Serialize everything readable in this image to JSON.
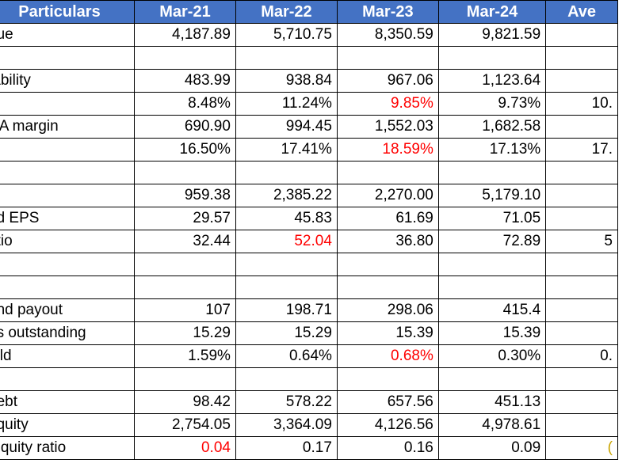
{
  "header": [
    "Particulars",
    "Mar-21",
    "Mar-22",
    "Mar-23",
    "Mar-24",
    "Ave"
  ],
  "rows": [
    {
      "cells": [
        "nue",
        "4,187.89",
        "5,710.75",
        "8,350.59",
        "9,821.59",
        ""
      ]
    },
    {
      "cells": [
        "",
        "",
        "",
        "",
        "",
        ""
      ]
    },
    {
      "cells": [
        "tability",
        "483.99",
        "938.84",
        "967.06",
        "1,123.64",
        ""
      ]
    },
    {
      "cells": [
        "",
        "8.48%",
        "11.24%",
        "9.85%",
        "9.73%",
        "10."
      ],
      "red": [
        3
      ]
    },
    {
      "cells": [
        "DA margin",
        "690.90",
        "994.45",
        "1,552.03",
        "1,682.58",
        ""
      ]
    },
    {
      "cells": [
        "",
        "16.50%",
        "17.41%",
        "18.59%",
        "17.13%",
        "17."
      ],
      "red": [
        3
      ]
    },
    {
      "cells": [
        "",
        "",
        "",
        "",
        "",
        ""
      ]
    },
    {
      "cells": [
        "",
        "959.38",
        "2,385.22",
        "2,270.00",
        "5,179.10",
        ""
      ]
    },
    {
      "cells": [
        "ed EPS",
        "29.57",
        "45.83",
        "61.69",
        "71.05",
        ""
      ]
    },
    {
      "cells": [
        "atio",
        "32.44",
        "52.04",
        "36.80",
        "72.89",
        "5"
      ],
      "red": [
        2
      ]
    },
    {
      "cells": [
        "",
        "",
        "",
        "",
        "",
        ""
      ]
    },
    {
      "cells": [
        "",
        "",
        "",
        "",
        "",
        ""
      ]
    },
    {
      "cells": [
        "end payout",
        "107",
        "198.71",
        "298.06",
        "415.4",
        ""
      ]
    },
    {
      "cells": [
        "es outstanding",
        "15.29",
        "15.29",
        "15.39",
        "15.39",
        ""
      ]
    },
    {
      "cells": [
        "ield",
        "1.59%",
        "0.64%",
        "0.68%",
        "0.30%",
        "0."
      ],
      "red": [
        3
      ]
    },
    {
      "cells": [
        "",
        "",
        "",
        "",
        "",
        ""
      ]
    },
    {
      "cells": [
        " debt",
        "98.42",
        "578.22",
        "657.56",
        "451.13",
        ""
      ]
    },
    {
      "cells": [
        " equity",
        "2,754.05",
        "3,364.09",
        "4,126.56",
        "4,978.61",
        ""
      ]
    },
    {
      "cells": [
        "/equity ratio",
        "0.04",
        "0.17",
        "0.16",
        "0.09",
        "("
      ],
      "red": [
        1
      ],
      "gold": [
        5
      ]
    }
  ],
  "colors": {
    "header_bg": "#4472c4",
    "header_text": "#ffffff",
    "highlight_red": "#ff0000",
    "highlight_gold": "#c9a400"
  }
}
